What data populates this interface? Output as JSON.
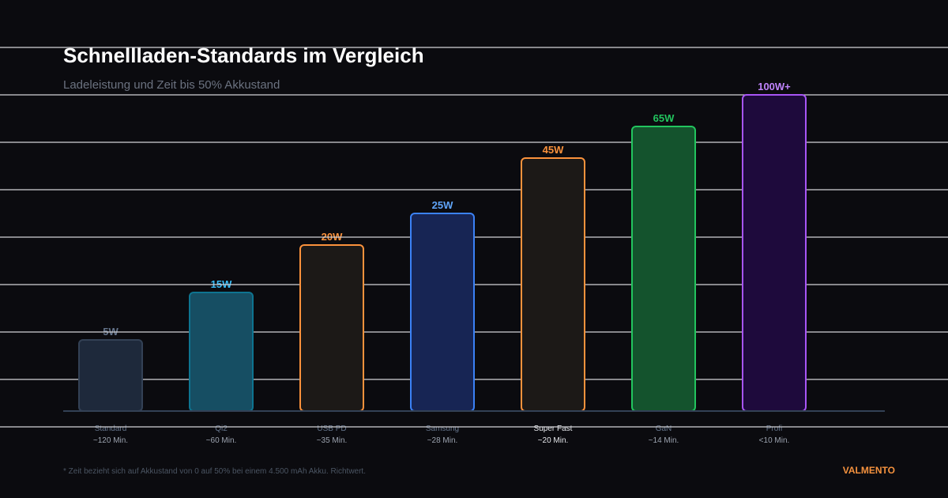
{
  "chart_data": {
    "type": "bar",
    "title": "Schnellladen-Standards im Vergleich",
    "subtitle": "Ladeleistung und Zeit bis 50% Akkustand",
    "categories": [
      "Standard",
      "Qi2",
      "USB PD",
      "Samsung",
      "Super Fast",
      "GaN",
      "Profi"
    ],
    "values_watts": [
      5,
      15,
      20,
      25,
      45,
      65,
      100
    ],
    "value_labels": [
      "5W",
      "15W",
      "20W",
      "25W",
      "45W",
      "65W",
      "100W+"
    ],
    "time_labels": [
      "~120 Min.",
      "~60 Min.",
      "~35 Min.",
      "~28 Min.",
      "~20 Min.",
      "~14 Min.",
      "<10 Min."
    ],
    "colors": {
      "fill": [
        "#1e293b",
        "#164e63",
        "#1c1917",
        "#172554",
        "#1c1917",
        "#14532d",
        "#1e0a3c"
      ],
      "stroke": [
        "#334155",
        "#0e7490",
        "#fb923c",
        "#3b82f6",
        "#fb923c",
        "#22c55e",
        "#a855f7"
      ],
      "label": [
        "#64748b",
        "#38bdf8",
        "#fb923c",
        "#60a5fa",
        "#fb923c",
        "#22c55e",
        "#c084fc"
      ],
      "category_text": [
        "#64748b",
        "#64748b",
        "#64748b",
        "#64748b",
        "#e5e7eb",
        "#64748b",
        "#64748b"
      ]
    },
    "grid": true,
    "xlabel": "",
    "ylabel": ""
  },
  "footnote": "* Zeit bezieht sich auf Akkustand von 0 auf 50% bei einem 4.500 mAh Akku. Richtwert.",
  "brand": "VALMENTO"
}
